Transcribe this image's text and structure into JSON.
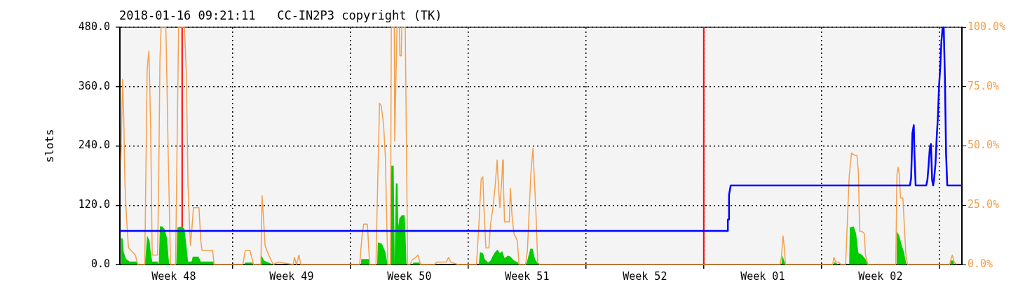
{
  "chart_data": {
    "type": "line",
    "title": "2018-01-16 09:21:11   CC-IN2P3 copyright (TK)",
    "ylabel": "slots",
    "xlim": [
      "2017-11-27T07:12",
      "2018-01-16T08:10"
    ],
    "xticks": [
      {
        "value": "2017-11-30T12:00",
        "label": "Week 48"
      },
      {
        "value": "2017-12-04",
        "label": null
      },
      {
        "value": "2017-12-07T12:00",
        "label": "Week 49"
      },
      {
        "value": "2017-12-11",
        "label": null
      },
      {
        "value": "2017-12-14T12:00",
        "label": "Week 50"
      },
      {
        "value": "2017-12-18",
        "label": null
      },
      {
        "value": "2017-12-21T12:00",
        "label": "Week 51"
      },
      {
        "value": "2017-12-25",
        "label": null
      },
      {
        "value": "2017-12-28T12:00",
        "label": "Week 52"
      },
      {
        "value": "2018-01-01",
        "label": null
      },
      {
        "value": "2018-01-04T12:00",
        "label": "Week 01"
      },
      {
        "value": "2018-01-08",
        "label": null
      },
      {
        "value": "2018-01-11T12:00",
        "label": "Week 02"
      },
      {
        "value": "2018-01-15",
        "label": null
      }
    ],
    "ylim": [
      0,
      480
    ],
    "yticks": [
      {
        "value": 0,
        "label": "0.0"
      },
      {
        "value": 120,
        "label": "120.0"
      },
      {
        "value": 240,
        "label": "240.0"
      },
      {
        "value": 360,
        "label": "360.0"
      },
      {
        "value": 480,
        "label": "480.0"
      }
    ],
    "y2lim": [
      0,
      100
    ],
    "y2ticks": [
      {
        "value": 0,
        "label": "0.0%"
      },
      {
        "value": 25,
        "label": "25.0%"
      },
      {
        "value": 50,
        "label": "50.0%"
      },
      {
        "value": 75,
        "label": "75.0%"
      },
      {
        "value": 100,
        "label": "100.0%"
      }
    ],
    "grid": true,
    "legend": false,
    "ref_lines": [
      {
        "axis": "x",
        "value": "2017-12-01",
        "color": "#ff0000"
      },
      {
        "axis": "x",
        "value": "2018-01-01",
        "color": "#ff0000"
      }
    ],
    "series": [
      {
        "type": "area",
        "color": "#00cc00",
        "x": [
          "2017-11-27T08:38",
          "2017-11-27T11:02",
          "2017-11-27T12:43",
          "2017-11-27T16:05",
          "2017-11-27T21:07",
          "2017-11-28T06:58",
          "2017-11-28T08:38",
          "2017-11-28T18:43",
          "2017-11-28T20:24",
          "2017-11-28T22:05",
          "2017-11-29T01:26",
          "2017-11-29T03:07",
          "2017-11-29T05:17",
          "2017-11-29T12:58",
          "2017-11-29T14:38",
          "2017-11-29T16:19",
          "2017-11-29T19:41",
          "2017-11-29T23:02",
          "2017-11-30T02:24",
          "2017-11-30T04:48",
          "2017-11-30T05:46",
          "2017-11-30T15:36",
          "2017-11-30T17:17",
          "2017-12-01T00:00",
          "2017-12-01T03:22",
          "2017-12-01T06:00",
          "2017-12-01T08:24",
          "2017-12-01T13:26",
          "2017-12-01T15:07",
          "2017-12-01T23:17",
          "2017-12-02T02:38",
          "2017-12-02T20:53",
          "2017-12-02T21:36",
          "2017-12-04T16:19",
          "2017-12-04T18:00",
          "2017-12-05T03:50",
          "2017-12-05T05:31",
          "2017-12-05T16:19",
          "2017-12-05T17:17",
          "2017-12-05T20:38",
          "2017-12-06T03:22",
          "2017-12-06T10:05",
          "2017-12-11T14:53",
          "2017-12-11T15:36",
          "2017-12-12T02:38",
          "2017-12-12T03:22",
          "2017-12-12T14:10",
          "2017-12-12T15:07",
          "2017-12-12T20:53",
          "2017-12-13T01:55",
          "2017-12-13T04:34",
          "2017-12-13T05:17",
          "2017-12-13T09:07",
          "2017-12-13T10:19",
          "2017-12-13T13:41",
          "2017-12-13T15:07",
          "2017-12-13T16:48",
          "2017-12-13T19:12",
          "2017-12-13T20:10",
          "2017-12-13T21:50",
          "2017-12-14T01:12",
          "2017-12-14T05:17",
          "2017-12-14T06:14",
          "2017-12-14T07:55",
          "2017-12-14T16:19",
          "2017-12-14T18:00",
          "2017-12-15T02:10",
          "2017-12-15T03:50",
          "2017-12-18T15:07",
          "2017-12-18T16:48",
          "2017-12-18T21:07",
          "2017-12-18T23:31",
          "2017-12-19T04:34",
          "2017-12-19T07:55",
          "2017-12-19T11:17",
          "2017-12-19T14:24",
          "2017-12-19T17:46",
          "2017-12-19T21:07",
          "2017-12-20T00:29",
          "2017-12-20T03:50",
          "2017-12-20T08:53",
          "2017-12-20T12:14",
          "2017-12-20T17:17",
          "2017-12-20T23:17",
          "2017-12-21T00:00",
          "2017-12-21T09:50",
          "2017-12-21T11:31",
          "2017-12-21T16:34",
          "2017-12-21T19:55",
          "2017-12-21T23:17",
          "2017-12-22T02:24",
          "2017-12-22T05:02",
          "2018-01-05T14:38",
          "2018-01-05T16:19",
          "2018-01-05T18:58",
          "2018-01-05T20:24",
          "2018-01-08T17:31",
          "2018-01-08T18:14",
          "2018-01-09T00:14",
          "2018-01-09T15:22",
          "2018-01-09T16:19",
          "2018-01-09T21:50",
          "2018-01-10T01:12",
          "2018-01-10T04:34",
          "2018-01-10T09:36",
          "2018-01-10T14:38",
          "2018-01-10T18:00",
          "2018-01-12T11:02",
          "2018-01-12T11:31",
          "2018-01-12T14:53",
          "2018-01-12T18:14",
          "2018-01-12T21:36",
          "2018-01-13T00:58",
          "2018-01-15T15:36",
          "2018-01-15T16:19",
          "2018-01-15T19:41",
          "2018-01-15T21:07"
        ],
        "values": [
          53,
          53,
          25,
          11,
          6,
          6,
          0,
          0,
          27,
          58,
          49,
          25,
          6,
          6,
          0,
          77,
          77,
          72,
          53,
          11,
          0,
          0,
          75,
          77,
          72,
          39,
          6,
          6,
          16,
          16,
          6,
          6,
          0,
          0,
          4,
          4,
          0,
          0,
          18,
          8,
          4,
          0,
          0,
          11,
          11,
          0,
          0,
          45,
          42,
          25,
          4,
          0,
          0,
          200,
          200,
          4,
          164,
          164,
          77,
          93,
          100,
          100,
          77,
          0,
          0,
          4,
          4,
          0,
          0,
          25,
          23,
          11,
          4,
          8,
          18,
          25,
          30,
          23,
          27,
          13,
          18,
          16,
          8,
          4,
          0,
          0,
          4,
          32,
          32,
          11,
          4,
          0,
          0,
          18,
          6,
          0,
          0,
          5,
          0,
          0,
          75,
          77,
          63,
          23,
          20,
          11,
          0,
          0,
          67,
          58,
          39,
          25,
          0,
          0,
          8,
          8,
          0
        ]
      },
      {
        "type": "line",
        "color": "#0000ff",
        "x": [
          "2017-11-27T07:12",
          "2018-01-02T10:19",
          "2018-01-02T10:19",
          "2018-01-02T12:00",
          "2018-01-02T12:00",
          "2018-01-02T14:24",
          "2018-01-13T06:00",
          "2018-01-13T07:41",
          "2018-01-13T09:36",
          "2018-01-13T11:31",
          "2018-01-13T12:29",
          "2018-01-13T14:10",
          "2018-01-14T05:17",
          "2018-01-14T06:58",
          "2018-01-14T08:38",
          "2018-01-14T10:19",
          "2018-01-14T12:00",
          "2018-01-14T13:41",
          "2018-01-14T15:07",
          "2018-01-14T16:19",
          "2018-01-14T18:29",
          "2018-01-14T20:10",
          "2018-01-14T21:50",
          "2018-01-14T23:31",
          "2018-01-15T01:12",
          "2018-01-15T02:53",
          "2018-01-15T04:34",
          "2018-01-15T06:14",
          "2018-01-15T07:55",
          "2018-01-15T09:36",
          "2018-01-15T11:17",
          "2018-01-16T08:10"
        ],
        "values": [
          68,
          68,
          91,
          91,
          141,
          160,
          160,
          174,
          266,
          282,
          223,
          160,
          160,
          171,
          200,
          235,
          244,
          171,
          160,
          171,
          204,
          256,
          297,
          360,
          398,
          450,
          478,
          480,
          379,
          223,
          160,
          160
        ]
      },
      {
        "type": "line",
        "axis": "y2",
        "color": "#f5a04c",
        "x": [
          "2017-11-27T08:38",
          "2017-11-27T11:02",
          "2017-11-27T12:43",
          "2017-11-27T14:24",
          "2017-11-27T16:48",
          "2017-11-27T19:26",
          "2017-11-28T02:10",
          "2017-11-28T05:17",
          "2017-11-28T08:38",
          "2017-11-28T18:43",
          "2017-11-28T20:24",
          "2017-11-28T22:05",
          "2017-11-29T00:29",
          "2017-11-29T01:26",
          "2017-11-29T03:07",
          "2017-11-29T05:17",
          "2017-11-29T12:58",
          "2017-11-29T14:38",
          "2017-11-29T16:19",
          "2017-11-29T18:00",
          "2017-11-30T00:43",
          "2017-11-30T01:26",
          "2017-11-30T04:05",
          "2017-11-30T07:26",
          "2017-11-30T14:38",
          "2017-11-30T18:58",
          "2017-12-01T03:22",
          "2017-12-01T06:00",
          "2017-12-01T08:24",
          "2017-12-01T11:46",
          "2017-12-01T13:55",
          "2017-12-01T16:05",
          "2017-12-02T00:00",
          "2017-12-02T02:38",
          "2017-12-02T04:19",
          "2017-12-02T19:26",
          "2017-12-02T21:36",
          "2017-12-04T14:38",
          "2017-12-04T18:00",
          "2017-12-05T00:43",
          "2017-12-05T05:46",
          "2017-12-05T16:19",
          "2017-12-05T18:00",
          "2017-12-05T19:55",
          "2017-12-05T22:19",
          "2017-12-06T03:22",
          "2017-12-06T10:05",
          "2017-12-06T16:34",
          "2017-12-07T14:24",
          "2017-12-07T16:05",
          "2017-12-07T19:12",
          "2017-12-07T22:34",
          "2017-12-08T01:12",
          "2017-12-11T13:12",
          "2017-12-11T16:34",
          "2017-12-11T18:58",
          "2017-12-12T00:14",
          "2017-12-12T02:38",
          "2017-12-12T03:22",
          "2017-12-12T12:29",
          "2017-12-12T14:10",
          "2017-12-12T17:31",
          "2017-12-12T19:55",
          "2017-12-12T23:17",
          "2017-12-13T01:55",
          "2017-12-13T03:36",
          "2017-12-13T05:17",
          "2017-12-13T09:07",
          "2017-12-13T10:19",
          "2017-12-13T14:38",
          "2017-12-13T15:07",
          "2017-12-13T18:29",
          "2017-12-13T21:50",
          "2017-12-13T22:34",
          "2017-12-14T00:29",
          "2017-12-14T01:12",
          "2017-12-14T06:14",
          "2017-12-14T07:55",
          "2017-12-14T09:36",
          "2017-12-14T12:58",
          "2017-12-14T16:19",
          "2017-12-14T21:07",
          "2017-12-15T00:29",
          "2017-12-15T03:50",
          "2017-12-15T23:46",
          "2017-12-16T03:07",
          "2017-12-16T16:34",
          "2017-12-16T19:55",
          "2017-12-16T23:17",
          "2017-12-17T09:07",
          "2017-12-18T11:46",
          "2017-12-18T15:07",
          "2017-12-18T18:29",
          "2017-12-18T20:53",
          "2017-12-18T22:34",
          "2017-12-19T01:12",
          "2017-12-19T05:31",
          "2017-12-19T07:55",
          "2017-12-19T11:17",
          "2017-12-19T14:24",
          "2017-12-19T17:17",
          "2017-12-19T18:58",
          "2017-12-19T21:07",
          "2017-12-19T23:46",
          "2017-12-20T01:12",
          "2017-12-20T02:10",
          "2017-12-20T03:50",
          "2017-12-20T10:34",
          "2017-12-20T12:14",
          "2017-12-20T14:24",
          "2017-12-20T17:17",
          "2017-12-20T22:05",
          "2017-12-21T00:29",
          "2017-12-21T09:50",
          "2017-12-21T12:29",
          "2017-12-21T17:17",
          "2017-12-21T20:24",
          "2017-12-21T22:05",
          "2017-12-22T00:43",
          "2017-12-22T03:07",
          "2017-12-22T05:46",
          "2018-01-05T12:58",
          "2018-01-05T14:38",
          "2018-01-05T17:02",
          "2018-01-05T18:58",
          "2018-01-05T20:24",
          "2018-01-08T15:50",
          "2018-01-08T17:31",
          "2018-01-08T20:24",
          "2018-01-09T00:14",
          "2018-01-09T03:36",
          "2018-01-09T10:19",
          "2018-01-09T15:22",
          "2018-01-09T18:43",
          "2018-01-09T23:31",
          "2018-01-10T02:24",
          "2018-01-10T04:34",
          "2018-01-10T06:14",
          "2018-01-10T09:36",
          "2018-01-10T12:58",
          "2018-01-10T14:38",
          "2018-01-10T18:00",
          "2018-01-12T09:50",
          "2018-01-12T11:31",
          "2018-01-12T13:12",
          "2018-01-12T14:53",
          "2018-01-12T16:34",
          "2018-01-12T19:55",
          "2018-01-12T21:36",
          "2018-01-13T00:14",
          "2018-01-13T02:38",
          "2018-01-15T14:38",
          "2018-01-15T16:19",
          "2018-01-15T18:29",
          "2018-01-15T21:07",
          "2018-01-16T00:29"
        ],
        "values": [
          44,
          78,
          62,
          34,
          19,
          7,
          5,
          4,
          0,
          0,
          42,
          82,
          90,
          80,
          57,
          4,
          4,
          38,
          86,
          100,
          100,
          91,
          47,
          0,
          0,
          100,
          100,
          80,
          33,
          8,
          15,
          24,
          24,
          10,
          6,
          6,
          0,
          0,
          6,
          6,
          0,
          0,
          29,
          20,
          8,
          4,
          0,
          1,
          0,
          3,
          0,
          4,
          0,
          0,
          12,
          17,
          17,
          4,
          0,
          0,
          25,
          68,
          67,
          59,
          45,
          21,
          0,
          0,
          100,
          100,
          52,
          100,
          100,
          88,
          88,
          100,
          100,
          50,
          0,
          0,
          2,
          3,
          4,
          0,
          0,
          1,
          1,
          3,
          1,
          0,
          0,
          16,
          36,
          37,
          23,
          7,
          7,
          17,
          24,
          33,
          44,
          34,
          24,
          35,
          44,
          35,
          18,
          18,
          32,
          21,
          13,
          10,
          0,
          0,
          6,
          38,
          49,
          38,
          21,
          1,
          0,
          0,
          3,
          12,
          7,
          0,
          0,
          3,
          1,
          1,
          0,
          0,
          37,
          47,
          46,
          46,
          39,
          14,
          14,
          13,
          4,
          0,
          0,
          38,
          41,
          38,
          28,
          28,
          19,
          4,
          0,
          0,
          2,
          4,
          1,
          0
        ]
      }
    ]
  }
}
